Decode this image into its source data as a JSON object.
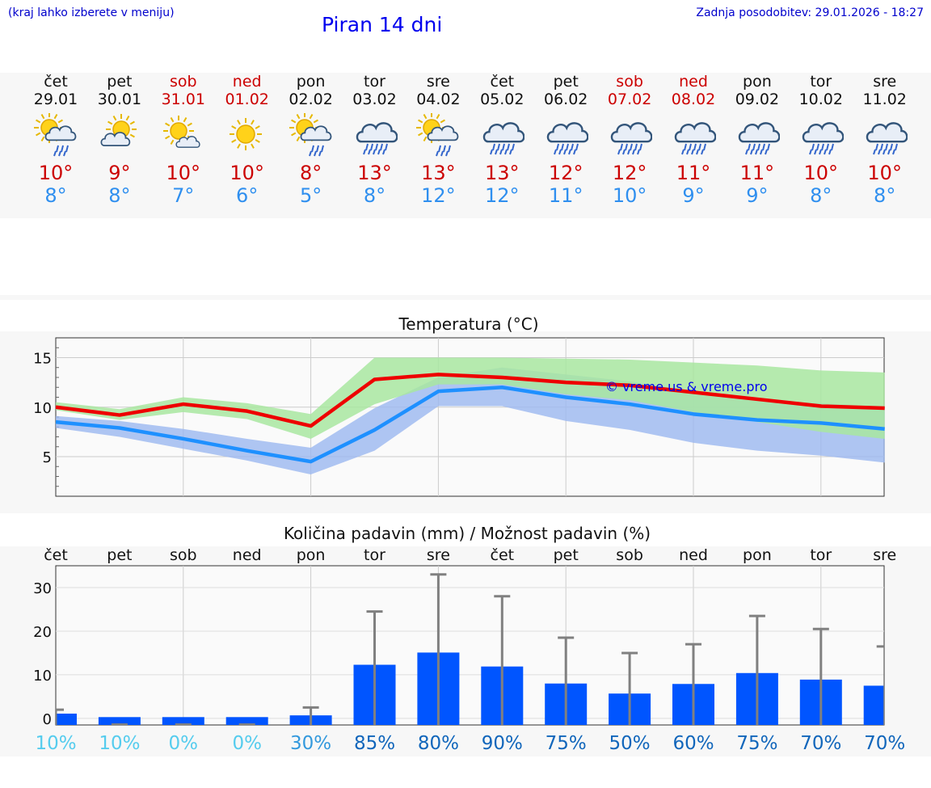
{
  "header": {
    "note": "(kraj lahko izberete v meniju)",
    "title": "Piran 14 dni",
    "updated": "Zadnja posodobitev: 29.01.2026 - 18:27"
  },
  "days": [
    {
      "wd": "čet",
      "date": "29.01",
      "weekend": false,
      "icon": "sun-cloud-rain-icon",
      "tmax": "10°",
      "tmin": "8°"
    },
    {
      "wd": "pet",
      "date": "30.01",
      "weekend": false,
      "icon": "sun-cloud-icon",
      "tmax": "9°",
      "tmin": "8°"
    },
    {
      "wd": "sob",
      "date": "31.01",
      "weekend": true,
      "icon": "sun-small-cloud-icon",
      "tmax": "10°",
      "tmin": "7°"
    },
    {
      "wd": "ned",
      "date": "01.02",
      "weekend": true,
      "icon": "sun-icon",
      "tmax": "10°",
      "tmin": "6°"
    },
    {
      "wd": "pon",
      "date": "02.02",
      "weekend": false,
      "icon": "sun-cloud-rain-icon",
      "tmax": "8°",
      "tmin": "5°"
    },
    {
      "wd": "tor",
      "date": "03.02",
      "weekend": false,
      "icon": "cloud-rain-icon",
      "tmax": "13°",
      "tmin": "8°"
    },
    {
      "wd": "sre",
      "date": "04.02",
      "weekend": false,
      "icon": "sun-cloud-rain-icon",
      "tmax": "13°",
      "tmin": "12°"
    },
    {
      "wd": "čet",
      "date": "05.02",
      "weekend": false,
      "icon": "cloud-rain-icon",
      "tmax": "13°",
      "tmin": "12°"
    },
    {
      "wd": "pet",
      "date": "06.02",
      "weekend": false,
      "icon": "cloud-rain-icon",
      "tmax": "12°",
      "tmin": "11°"
    },
    {
      "wd": "sob",
      "date": "07.02",
      "weekend": true,
      "icon": "cloud-rain-icon",
      "tmax": "12°",
      "tmin": "10°"
    },
    {
      "wd": "ned",
      "date": "08.02",
      "weekend": true,
      "icon": "cloud-rain-icon",
      "tmax": "11°",
      "tmin": "9°"
    },
    {
      "wd": "pon",
      "date": "09.02",
      "weekend": false,
      "icon": "cloud-rain-icon",
      "tmax": "11°",
      "tmin": "9°"
    },
    {
      "wd": "tor",
      "date": "10.02",
      "weekend": false,
      "icon": "cloud-rain-icon",
      "tmax": "10°",
      "tmin": "8°"
    },
    {
      "wd": "sre",
      "date": "11.02",
      "weekend": false,
      "icon": "cloud-rain-icon",
      "tmax": "10°",
      "tmin": "8°"
    }
  ],
  "colors": {
    "max_line": "#ee0000",
    "min_line": "#1e90ff",
    "max_band": "#a8e6a0",
    "min_band": "#9bb8f0",
    "overlap_band": "#7cc0b0",
    "bar": "#0055ff",
    "error": "#808080",
    "pct_low": "#55ccee",
    "pct_high": "#1166bb"
  },
  "chart_data": [
    {
      "type": "line",
      "title": "Temperatura (°C)",
      "watermark": "© vreme.us & vreme.pro",
      "x": [
        0,
        1,
        2,
        3,
        4,
        5,
        6,
        7,
        8,
        9,
        10,
        11,
        12,
        13
      ],
      "ylim": [
        1,
        17
      ],
      "yticks": [
        "5",
        "10",
        "15"
      ],
      "series": [
        {
          "name": "max",
          "values": [
            10,
            9.2,
            10.3,
            9.6,
            8.1,
            12.8,
            13.3,
            13.0,
            12.5,
            12.2,
            11.5,
            10.8,
            10.1,
            9.9
          ]
        },
        {
          "name": "min",
          "values": [
            8.5,
            7.9,
            6.8,
            5.6,
            4.5,
            7.7,
            11.6,
            12.0,
            11.0,
            10.3,
            9.3,
            8.7,
            8.4,
            7.8
          ]
        },
        {
          "name": "max_range_low",
          "values": [
            9.7,
            8.7,
            9.5,
            8.8,
            6.8,
            10.3,
            12.3,
            12.3,
            11.3,
            10.7,
            9.5,
            8.5,
            7.5,
            6.8
          ]
        },
        {
          "name": "max_range_high",
          "values": [
            10.5,
            9.8,
            11.0,
            10.4,
            9.3,
            15.0,
            15.0,
            15.0,
            14.9,
            14.8,
            14.5,
            14.2,
            13.7,
            13.5
          ]
        },
        {
          "name": "min_range_low",
          "values": [
            7.9,
            7.0,
            5.8,
            4.6,
            3.2,
            5.6,
            10.1,
            10.1,
            8.6,
            7.7,
            6.4,
            5.6,
            5.1,
            4.4
          ]
        },
        {
          "name": "min_range_high",
          "values": [
            9.1,
            8.6,
            7.8,
            6.8,
            5.9,
            9.9,
            13.0,
            14.0,
            13.3,
            12.6,
            11.6,
            10.7,
            10.4,
            10.0
          ]
        }
      ]
    },
    {
      "type": "bar",
      "title": "Količina padavin (mm) / Možnost padavin (%)",
      "categories": [
        "čet",
        "pet",
        "sob",
        "ned",
        "pon",
        "tor",
        "sre",
        "čet",
        "pet",
        "sob",
        "ned",
        "pon",
        "tor",
        "sre"
      ],
      "values": [
        0.8,
        0,
        0,
        0,
        0.4,
        12.0,
        14.8,
        11.6,
        7.7,
        5.4,
        7.6,
        10.1,
        8.6,
        7.2
      ],
      "error_high": [
        2,
        0,
        0,
        0,
        2.5,
        24.5,
        33,
        28,
        18.5,
        15,
        17,
        23.5,
        20.5,
        16.5
      ],
      "probability": [
        "10%",
        "10%",
        "0%",
        "0%",
        "30%",
        "85%",
        "80%",
        "90%",
        "75%",
        "50%",
        "60%",
        "75%",
        "70%",
        "70%"
      ],
      "ylim": [
        -1.5,
        35
      ],
      "yticks": [
        "0",
        "10",
        "20",
        "30"
      ]
    }
  ]
}
